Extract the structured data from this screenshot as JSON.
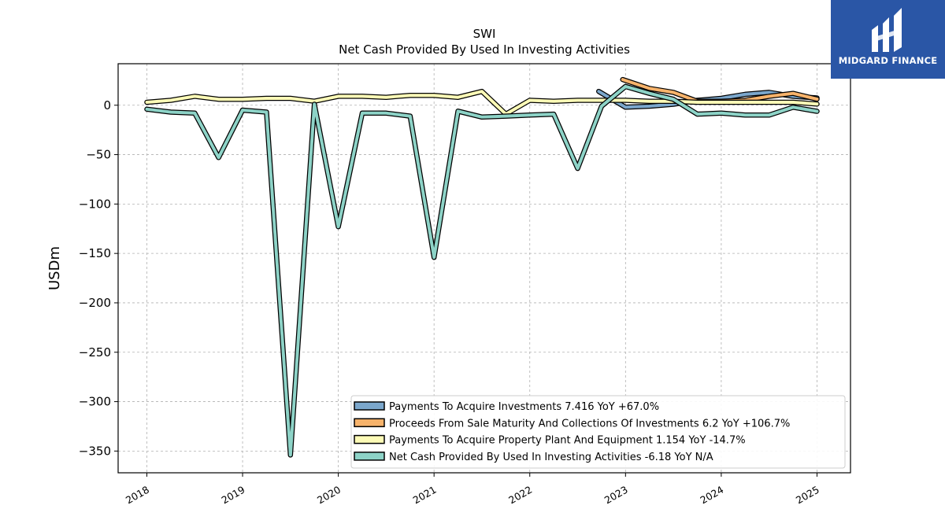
{
  "header": {
    "ticker": "SWI",
    "subtitle": "Net Cash Provided By Used In Investing Activities"
  },
  "brand": {
    "name": "MIDGARD FINANCE",
    "color": "#2a56a6"
  },
  "chart_data": {
    "type": "line",
    "title": "SWI",
    "subtitle": "Net Cash Provided By Used In Investing Activities",
    "ylabel": "USDm",
    "xlabel": "",
    "xlim": [
      2017.7,
      2025.35
    ],
    "ylim": [
      -372,
      42
    ],
    "yticks": [
      0,
      -50,
      -100,
      -150,
      -200,
      -250,
      -300,
      -350
    ],
    "ytick_labels": [
      "0",
      "−50",
      "−100",
      "−150",
      "−200",
      "−250",
      "−300",
      "−350"
    ],
    "xticks": [
      2018,
      2019,
      2020,
      2021,
      2022,
      2023,
      2024,
      2025
    ],
    "xtick_labels": [
      "2018",
      "2019",
      "2020",
      "2021",
      "2022",
      "2023",
      "2024",
      "2025"
    ],
    "grid": true,
    "legend_position": "lower-right",
    "series": [
      {
        "name": "Payments To Acquire Investments",
        "legend": "Payments To Acquire Investments  7.416 YoY +67.0%",
        "color": "#7ba7cc",
        "x": [
          2022.72,
          2023.0,
          2023.25,
          2023.5,
          2023.75,
          2024.0,
          2024.25,
          2024.5,
          2024.75,
          2025.0
        ],
        "y": [
          14,
          -2,
          -1,
          1,
          5,
          7,
          11,
          13,
          9,
          7.4
        ]
      },
      {
        "name": "Proceeds From Sale Maturity And Collections Of Investments",
        "legend": "Proceeds From Sale Maturity And Collections Of Investments  6.2 YoY +106.7%",
        "color": "#f7b36b",
        "x": [
          2022.97,
          2023.25,
          2023.5,
          2023.75,
          2024.0,
          2024.25,
          2024.5,
          2024.75,
          2025.0
        ],
        "y": [
          26,
          17,
          13,
          4,
          4,
          5,
          9,
          12,
          6.2
        ]
      },
      {
        "name": "Payments To Acquire Property Plant And Equipment",
        "legend": "Payments To Acquire Property Plant And Equipment  1.154 YoY -14.7%",
        "color": "#fdfbb7",
        "x": [
          2018.0,
          2018.25,
          2018.5,
          2018.75,
          2019.0,
          2019.25,
          2019.5,
          2019.75,
          2020.0,
          2020.25,
          2020.5,
          2020.75,
          2021.0,
          2021.25,
          2021.5,
          2021.75,
          2022.0,
          2022.25,
          2022.5,
          2022.75,
          2023.0,
          2023.25,
          2023.5,
          2023.75,
          2024.0,
          2024.25,
          2024.5,
          2024.75,
          2025.0
        ],
        "y": [
          3,
          5,
          9,
          6,
          6,
          7,
          7,
          4,
          9,
          9,
          8,
          10,
          10,
          8,
          14,
          -9,
          5,
          4,
          5,
          5,
          5,
          4,
          4,
          3,
          3,
          3,
          3,
          3,
          1.2
        ]
      },
      {
        "name": "Net Cash Provided By Used In Investing Activities",
        "legend": "Net Cash Provided By Used In Investing Activities  -6.18 YoY N/A",
        "color": "#8dd3c7",
        "x": [
          2018.0,
          2018.25,
          2018.5,
          2018.75,
          2019.0,
          2019.25,
          2019.5,
          2019.75,
          2020.0,
          2020.25,
          2020.5,
          2020.75,
          2021.0,
          2021.25,
          2021.5,
          2021.75,
          2022.0,
          2022.25,
          2022.5,
          2022.75,
          2023.0,
          2023.25,
          2023.5,
          2023.75,
          2024.0,
          2024.25,
          2024.5,
          2024.75,
          2025.0
        ],
        "y": [
          -4,
          -7,
          -8,
          -53,
          -5,
          -7,
          -354,
          1,
          -123,
          -8,
          -8,
          -11,
          -154,
          -6,
          -12,
          -11,
          -10,
          -9,
          -64,
          -1,
          19,
          12,
          6,
          -9,
          -8,
          -10,
          -10,
          -2,
          -6.2
        ]
      }
    ]
  }
}
